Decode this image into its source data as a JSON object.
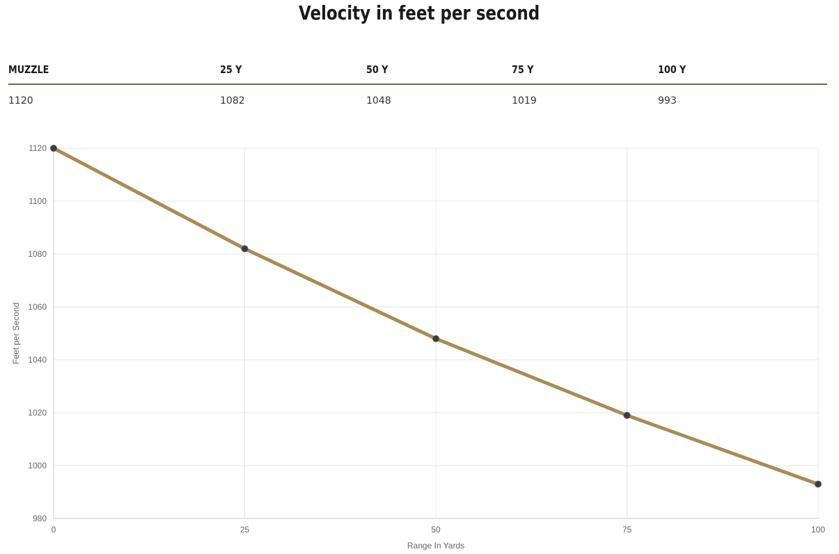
{
  "title": "Velocity in feet per second",
  "table": {
    "headers": [
      "MUZZLE",
      "25 Y",
      "50 Y",
      "75 Y",
      "100 Y"
    ],
    "values": [
      "1120",
      "1082",
      "1048",
      "1019",
      "993"
    ]
  },
  "chart_data": {
    "type": "line",
    "title": "",
    "xlabel": "Range In Yards",
    "ylabel": "Feet per Second",
    "x": [
      0,
      25,
      50,
      75,
      100
    ],
    "series": [
      {
        "values": [
          1120,
          1082,
          1048,
          1019,
          993
        ]
      }
    ],
    "xlim": [
      0,
      100
    ],
    "ylim": [
      980,
      1120
    ],
    "xticks": [
      0,
      25,
      50,
      75,
      100
    ],
    "yticks": [
      980,
      1000,
      1020,
      1040,
      1060,
      1080,
      1100,
      1120
    ],
    "grid": true,
    "colors": {
      "line": "#a88c57",
      "point": "#3d3d3d",
      "grid": "#e5e5e5",
      "axis": "#cccccc"
    }
  }
}
